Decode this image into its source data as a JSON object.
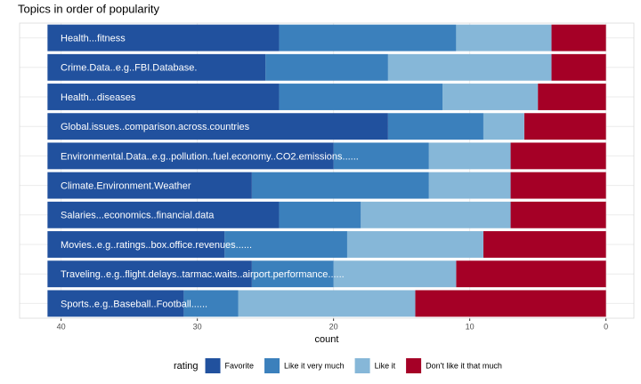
{
  "chart_data": {
    "type": "bar",
    "orientation": "horizontal",
    "stacked": true,
    "title": "Topics in order of popularity",
    "x_label": "count",
    "legend_title": "rating",
    "legend_position": "bottom",
    "categories": [
      "Health...fitness",
      "Crime.Data..e.g..FBI.Database.",
      "Health...diseases",
      "Global.issues..comparison.across.countries",
      "Environmental.Data..e.g..pollution..fuel.economy..CO2.emissions......",
      "Climate.Environment.Weather",
      "Salaries...economics..financial.data",
      "Movies..e.g..ratings..box.office.revenues......",
      "Traveling..e.g..flight.delays..tarmac.waits..airport.performance......",
      "Sports..e.g..Baseball..Football......"
    ],
    "series": [
      {
        "name": "Favorite",
        "color": "#21519e",
        "values": [
          17,
          16,
          17,
          25,
          21,
          15,
          17,
          13,
          15,
          10
        ]
      },
      {
        "name": "Like it very much",
        "color": "#3b80bc",
        "values": [
          13,
          9,
          12,
          7,
          7,
          13,
          6,
          9,
          6,
          4
        ]
      },
      {
        "name": "Like it",
        "color": "#86b7d8",
        "values": [
          7,
          12,
          7,
          3,
          6,
          6,
          11,
          10,
          9,
          13
        ]
      },
      {
        "name": "Don't like it that much",
        "color": "#a50026",
        "values": [
          4,
          4,
          5,
          6,
          7,
          7,
          7,
          9,
          11,
          14
        ]
      }
    ],
    "xlim": [
      43.05,
      -2.05
    ],
    "xticks": [
      40,
      30,
      20,
      10,
      0
    ],
    "grid": true
  }
}
